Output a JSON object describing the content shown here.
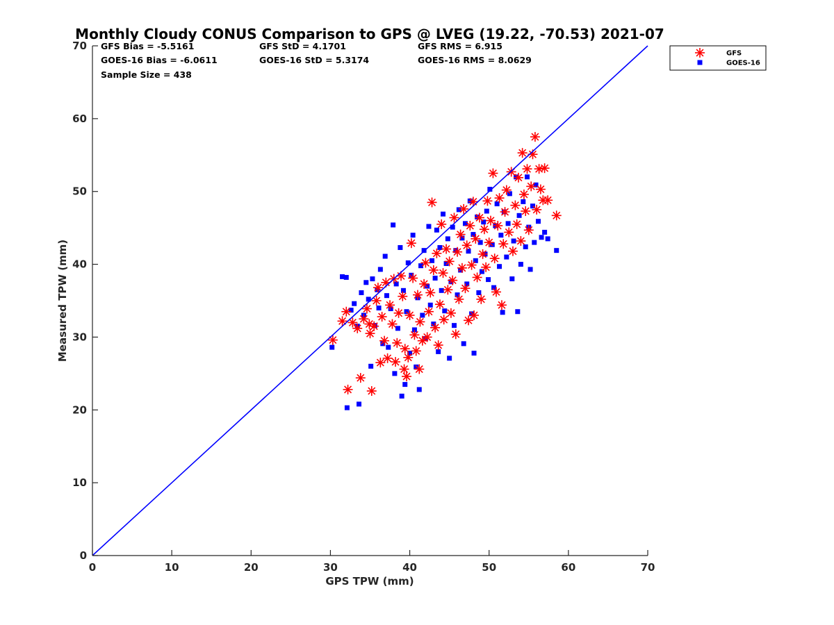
{
  "chart_data": {
    "type": "scatter",
    "title": "Monthly Cloudy CONUS Comparison to GPS @ LVEG (19.22, -70.53) 2021-07",
    "xlabel": "GPS TPW (mm)",
    "ylabel": "Measured TPW (mm)",
    "xlim": [
      0,
      70
    ],
    "ylim": [
      0,
      70
    ],
    "x_ticks": [
      "0",
      "10",
      "20",
      "30",
      "40",
      "50",
      "60",
      "70"
    ],
    "y_ticks": [
      "0",
      "10",
      "20",
      "30",
      "40",
      "50",
      "60",
      "70"
    ],
    "grid": false,
    "legend_position": "outside-top-right",
    "reference_line": {
      "from": [
        0,
        0
      ],
      "to": [
        70,
        70
      ],
      "color": "#0000ff"
    },
    "stats": [
      [
        "GFS Bias = -5.5161",
        "GFS StD = 4.1701",
        "GFS RMS = 6.915"
      ],
      [
        "GOES-16 Bias = -6.0611",
        "GOES-16 StD = 5.3174",
        "GOES-16 RMS = 8.0629"
      ],
      [
        "Sample Size = 438"
      ]
    ],
    "series": [
      {
        "name": "GFS",
        "marker": "asterisk",
        "color": "#ff0000",
        "points": [
          [
            30.3,
            29.6
          ],
          [
            31.5,
            32.2
          ],
          [
            32.0,
            33.5
          ],
          [
            32.2,
            22.8
          ],
          [
            32.8,
            32.0
          ],
          [
            33.4,
            31.2
          ],
          [
            33.8,
            24.4
          ],
          [
            34.2,
            32.5
          ],
          [
            34.6,
            33.9
          ],
          [
            34.9,
            31.8
          ],
          [
            35.2,
            22.6
          ],
          [
            35.0,
            30.5
          ],
          [
            35.5,
            31.5
          ],
          [
            35.8,
            35.0
          ],
          [
            36.0,
            36.8
          ],
          [
            36.3,
            26.5
          ],
          [
            36.5,
            32.8
          ],
          [
            36.8,
            29.5
          ],
          [
            37.0,
            37.5
          ],
          [
            37.2,
            27.1
          ],
          [
            37.5,
            34.4
          ],
          [
            37.8,
            31.8
          ],
          [
            38.0,
            38.0
          ],
          [
            38.2,
            26.6
          ],
          [
            38.4,
            29.2
          ],
          [
            38.6,
            33.3
          ],
          [
            38.9,
            38.4
          ],
          [
            39.1,
            35.6
          ],
          [
            39.3,
            25.6
          ],
          [
            39.4,
            28.4
          ],
          [
            39.6,
            24.6
          ],
          [
            39.8,
            27.2
          ],
          [
            40.0,
            33.0
          ],
          [
            40.2,
            42.9
          ],
          [
            40.4,
            38.1
          ],
          [
            40.6,
            30.3
          ],
          [
            40.8,
            28.1
          ],
          [
            41.0,
            35.8
          ],
          [
            41.2,
            25.6
          ],
          [
            41.3,
            32.1
          ],
          [
            41.6,
            29.5
          ],
          [
            41.8,
            37.3
          ],
          [
            42.0,
            40.2
          ],
          [
            42.2,
            30.0
          ],
          [
            42.4,
            33.5
          ],
          [
            42.6,
            36.1
          ],
          [
            42.8,
            48.5
          ],
          [
            43.0,
            39.2
          ],
          [
            43.2,
            31.3
          ],
          [
            43.4,
            41.5
          ],
          [
            43.6,
            28.9
          ],
          [
            43.8,
            34.5
          ],
          [
            44.0,
            45.5
          ],
          [
            44.2,
            38.8
          ],
          [
            44.3,
            32.4
          ],
          [
            44.6,
            42.1
          ],
          [
            44.8,
            36.5
          ],
          [
            45.0,
            40.4
          ],
          [
            45.2,
            33.3
          ],
          [
            45.4,
            37.8
          ],
          [
            45.6,
            46.4
          ],
          [
            45.8,
            30.4
          ],
          [
            46.0,
            41.7
          ],
          [
            46.2,
            35.2
          ],
          [
            46.4,
            44.1
          ],
          [
            46.6,
            39.5
          ],
          [
            46.8,
            47.6
          ],
          [
            47.0,
            36.7
          ],
          [
            47.2,
            42.6
          ],
          [
            47.4,
            32.3
          ],
          [
            47.6,
            45.3
          ],
          [
            47.8,
            39.9
          ],
          [
            48.0,
            48.6
          ],
          [
            48.1,
            33.0
          ],
          [
            48.3,
            43.5
          ],
          [
            48.5,
            38.2
          ],
          [
            48.8,
            46.4
          ],
          [
            49.0,
            35.2
          ],
          [
            49.2,
            41.4
          ],
          [
            49.4,
            44.8
          ],
          [
            49.6,
            39.6
          ],
          [
            49.8,
            48.7
          ],
          [
            50.0,
            43.0
          ],
          [
            50.2,
            46.0
          ],
          [
            50.5,
            52.5
          ],
          [
            50.7,
            40.8
          ],
          [
            50.9,
            36.2
          ],
          [
            51.1,
            45.3
          ],
          [
            51.3,
            49.1
          ],
          [
            51.6,
            34.4
          ],
          [
            51.8,
            42.8
          ],
          [
            52.0,
            47.2
          ],
          [
            52.2,
            50.2
          ],
          [
            52.5,
            44.4
          ],
          [
            52.8,
            52.7
          ],
          [
            53.0,
            41.8
          ],
          [
            53.3,
            48.1
          ],
          [
            53.5,
            45.5
          ],
          [
            53.7,
            51.9
          ],
          [
            54.0,
            43.2
          ],
          [
            54.2,
            55.3
          ],
          [
            54.4,
            49.6
          ],
          [
            54.6,
            47.3
          ],
          [
            54.8,
            53.1
          ],
          [
            55.0,
            44.7
          ],
          [
            55.3,
            50.7
          ],
          [
            55.5,
            55.1
          ],
          [
            55.8,
            57.5
          ],
          [
            56.0,
            47.5
          ],
          [
            56.3,
            53.1
          ],
          [
            56.5,
            50.3
          ],
          [
            56.8,
            48.8
          ],
          [
            57.0,
            53.2
          ],
          [
            57.4,
            48.8
          ],
          [
            58.5,
            46.7
          ]
        ]
      },
      {
        "name": "GOES-16",
        "marker": "square",
        "color": "#0000ff",
        "points": [
          [
            30.2,
            28.6
          ],
          [
            31.5,
            38.3
          ],
          [
            32.0,
            38.2
          ],
          [
            32.1,
            20.3
          ],
          [
            32.6,
            33.7
          ],
          [
            33.0,
            34.6
          ],
          [
            33.4,
            31.5
          ],
          [
            33.6,
            20.8
          ],
          [
            33.9,
            36.1
          ],
          [
            34.2,
            33.0
          ],
          [
            34.5,
            37.5
          ],
          [
            34.8,
            35.2
          ],
          [
            35.1,
            26.0
          ],
          [
            35.3,
            38.0
          ],
          [
            35.6,
            31.6
          ],
          [
            35.9,
            36.5
          ],
          [
            36.1,
            34.0
          ],
          [
            36.3,
            39.3
          ],
          [
            36.6,
            29.1
          ],
          [
            36.9,
            41.1
          ],
          [
            37.1,
            35.7
          ],
          [
            37.3,
            28.6
          ],
          [
            37.6,
            33.9
          ],
          [
            37.9,
            45.4
          ],
          [
            38.1,
            25.0
          ],
          [
            38.3,
            37.3
          ],
          [
            38.5,
            31.2
          ],
          [
            38.8,
            42.3
          ],
          [
            39.0,
            21.9
          ],
          [
            39.2,
            36.4
          ],
          [
            39.4,
            23.5
          ],
          [
            39.6,
            33.5
          ],
          [
            39.8,
            40.2
          ],
          [
            40.0,
            27.8
          ],
          [
            40.2,
            38.5
          ],
          [
            40.4,
            44.0
          ],
          [
            40.6,
            31.0
          ],
          [
            40.8,
            25.9
          ],
          [
            41.0,
            35.4
          ],
          [
            41.2,
            22.8
          ],
          [
            41.4,
            39.8
          ],
          [
            41.6,
            33.0
          ],
          [
            41.8,
            41.9
          ],
          [
            42.0,
            29.8
          ],
          [
            42.2,
            37.0
          ],
          [
            42.4,
            45.2
          ],
          [
            42.6,
            34.4
          ],
          [
            42.8,
            40.5
          ],
          [
            43.0,
            31.8
          ],
          [
            43.2,
            38.1
          ],
          [
            43.4,
            44.7
          ],
          [
            43.6,
            28.0
          ],
          [
            43.8,
            42.3
          ],
          [
            44.0,
            36.4
          ],
          [
            44.2,
            46.9
          ],
          [
            44.4,
            33.6
          ],
          [
            44.6,
            40.1
          ],
          [
            44.8,
            43.5
          ],
          [
            45.0,
            27.1
          ],
          [
            45.2,
            37.6
          ],
          [
            45.4,
            45.1
          ],
          [
            45.6,
            31.6
          ],
          [
            45.8,
            41.9
          ],
          [
            46.0,
            35.8
          ],
          [
            46.2,
            47.5
          ],
          [
            46.4,
            39.2
          ],
          [
            46.6,
            43.6
          ],
          [
            46.8,
            29.1
          ],
          [
            47.0,
            45.6
          ],
          [
            47.2,
            37.3
          ],
          [
            47.4,
            41.8
          ],
          [
            47.6,
            48.7
          ],
          [
            47.8,
            33.2
          ],
          [
            48.0,
            44.1
          ],
          [
            48.1,
            27.8
          ],
          [
            48.3,
            40.5
          ],
          [
            48.5,
            46.5
          ],
          [
            48.7,
            36.1
          ],
          [
            48.9,
            43.0
          ],
          [
            49.1,
            39.0
          ],
          [
            49.3,
            45.8
          ],
          [
            49.5,
            41.4
          ],
          [
            49.7,
            47.3
          ],
          [
            49.9,
            37.9
          ],
          [
            50.1,
            50.3
          ],
          [
            50.4,
            42.7
          ],
          [
            50.6,
            36.8
          ],
          [
            50.8,
            45.3
          ],
          [
            51.0,
            48.3
          ],
          [
            51.3,
            39.7
          ],
          [
            51.5,
            44.0
          ],
          [
            51.7,
            33.4
          ],
          [
            51.9,
            47.2
          ],
          [
            52.2,
            41.0
          ],
          [
            52.4,
            45.6
          ],
          [
            52.6,
            49.7
          ],
          [
            52.9,
            38.0
          ],
          [
            53.1,
            43.2
          ],
          [
            53.4,
            52.0
          ],
          [
            53.6,
            33.5
          ],
          [
            53.8,
            46.7
          ],
          [
            54.0,
            40.0
          ],
          [
            54.3,
            48.6
          ],
          [
            54.6,
            42.4
          ],
          [
            54.8,
            52.0
          ],
          [
            55.0,
            45.1
          ],
          [
            55.2,
            39.3
          ],
          [
            55.5,
            48.0
          ],
          [
            55.7,
            43.0
          ],
          [
            55.9,
            50.9
          ],
          [
            56.2,
            45.9
          ],
          [
            56.6,
            43.7
          ],
          [
            57.0,
            44.4
          ],
          [
            57.4,
            43.5
          ],
          [
            58.5,
            41.9
          ]
        ]
      }
    ]
  }
}
